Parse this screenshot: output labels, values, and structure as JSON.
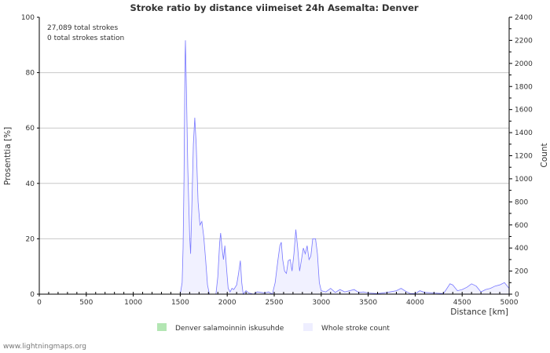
{
  "chart_data": {
    "type": "area",
    "title": "Stroke ratio by distance viimeiset 24h Asemalta: Denver",
    "xlabel": "Distance   [km]",
    "ylabel": "Prosenttia   [%]",
    "y2label": "Count",
    "xlim": [
      0,
      5000
    ],
    "ylim": [
      0,
      100
    ],
    "y2lim": [
      0,
      2400
    ],
    "xticks": [
      0,
      500,
      1000,
      1500,
      2000,
      2500,
      3000,
      3500,
      4000,
      4500,
      5000
    ],
    "yticks": [
      0,
      20,
      40,
      60,
      80,
      100
    ],
    "y2ticks": [
      0,
      200,
      400,
      600,
      800,
      1000,
      1200,
      1400,
      1600,
      1800,
      2000,
      2200,
      2400
    ],
    "annotations": [
      "27,089 total strokes",
      "0 total strokes station"
    ],
    "legend": [
      {
        "name": "Denver salamoinnin iskusuhde",
        "color": "#b3e6b3"
      },
      {
        "name": "Whole stroke count",
        "color": "#eeeeff"
      }
    ],
    "legend_position": "bottom",
    "grid": true,
    "series": [
      {
        "name": "Denver salamoinnin iskusuhde",
        "axis": "left",
        "x": [
          0,
          5000
        ],
        "y": [
          0,
          0
        ]
      },
      {
        "name": "Whole stroke count",
        "axis": "right",
        "color": "#6666ee",
        "x": [
          0,
          1500,
          1520,
          1530,
          1540,
          1550,
          1555,
          1565,
          1580,
          1600,
          1610,
          1625,
          1640,
          1655,
          1670,
          1690,
          1710,
          1730,
          1750,
          1770,
          1790,
          1810,
          1880,
          1900,
          1920,
          1930,
          1945,
          1960,
          1975,
          1995,
          2010,
          2030,
          2050,
          2070,
          2100,
          2120,
          2140,
          2155,
          2170,
          2200,
          2230,
          2280,
          2320,
          2360,
          2400,
          2440,
          2480,
          2510,
          2540,
          2560,
          2575,
          2590,
          2610,
          2630,
          2650,
          2670,
          2690,
          2710,
          2730,
          2750,
          2770,
          2790,
          2810,
          2830,
          2850,
          2870,
          2890,
          2910,
          2940,
          2960,
          2980,
          3000,
          3050,
          3100,
          3150,
          3200,
          3250,
          3300,
          3350,
          3400,
          3450,
          3500,
          3600,
          3700,
          3800,
          3850,
          3900,
          3950,
          4000,
          4050,
          4100,
          4200,
          4300,
          4330,
          4370,
          4400,
          4450,
          4500,
          4550,
          4600,
          4650,
          4700,
          4750,
          4800,
          4850,
          4900,
          4950,
          5000
        ],
        "y": [
          0,
          0,
          100,
          400,
          1000,
          2000,
          2200,
          1800,
          1100,
          500,
          350,
          800,
          1300,
          1530,
          1300,
          800,
          600,
          630,
          500,
          300,
          80,
          0,
          0,
          150,
          450,
          530,
          400,
          300,
          420,
          200,
          50,
          20,
          50,
          40,
          80,
          180,
          290,
          100,
          0,
          30,
          10,
          0,
          20,
          15,
          10,
          20,
          0,
          100,
          300,
          420,
          450,
          300,
          200,
          180,
          290,
          300,
          200,
          350,
          560,
          400,
          200,
          300,
          400,
          350,
          420,
          300,
          330,
          480,
          480,
          350,
          100,
          30,
          20,
          50,
          15,
          40,
          20,
          30,
          40,
          15,
          20,
          10,
          5,
          15,
          30,
          50,
          25,
          5,
          5,
          30,
          15,
          10,
          5,
          40,
          90,
          80,
          30,
          40,
          60,
          90,
          70,
          20,
          40,
          50,
          70,
          80,
          100,
          50
        ]
      }
    ]
  },
  "footer": "www.lightningmaps.org"
}
